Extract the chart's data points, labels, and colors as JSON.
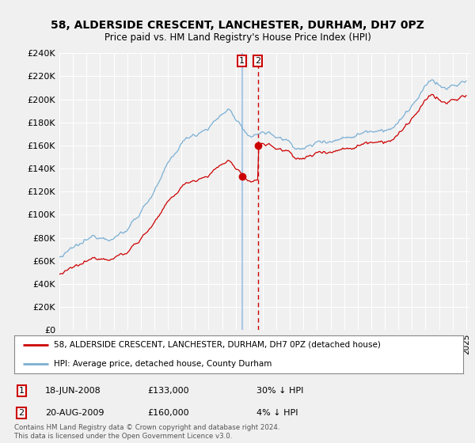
{
  "title": "58, ALDERSIDE CRESCENT, LANCHESTER, DURHAM, DH7 0PZ",
  "subtitle": "Price paid vs. HM Land Registry's House Price Index (HPI)",
  "ylim": [
    0,
    240000
  ],
  "yticks": [
    0,
    20000,
    40000,
    60000,
    80000,
    100000,
    120000,
    140000,
    160000,
    180000,
    200000,
    220000,
    240000
  ],
  "xlim_start": 1995.0,
  "xlim_end": 2025.3,
  "legend_entry1": "58, ALDERSIDE CRESCENT, LANCHESTER, DURHAM, DH7 0PZ (detached house)",
  "legend_entry2": "HPI: Average price, detached house, County Durham",
  "sale1_date": 2008.46,
  "sale1_price": 133000,
  "sale2_date": 2009.63,
  "sale2_price": 160000,
  "sale1_text": "18-JUN-2008",
  "sale1_price_text": "£133,000",
  "sale1_hpi_text": "30% ↓ HPI",
  "sale2_text": "20-AUG-2009",
  "sale2_price_text": "£160,000",
  "sale2_hpi_text": "4% ↓ HPI",
  "footer": "Contains HM Land Registry data © Crown copyright and database right 2024.\nThis data is licensed under the Open Government Licence v3.0.",
  "line_color_red": "#cc0000",
  "line_color_blue": "#7aafd4",
  "vline1_color": "#aac8e8",
  "vline2_color": "#cc0000",
  "background_color": "#f0f0f0",
  "plot_bg_color": "#f0f0f0",
  "grid_color": "#ffffff"
}
